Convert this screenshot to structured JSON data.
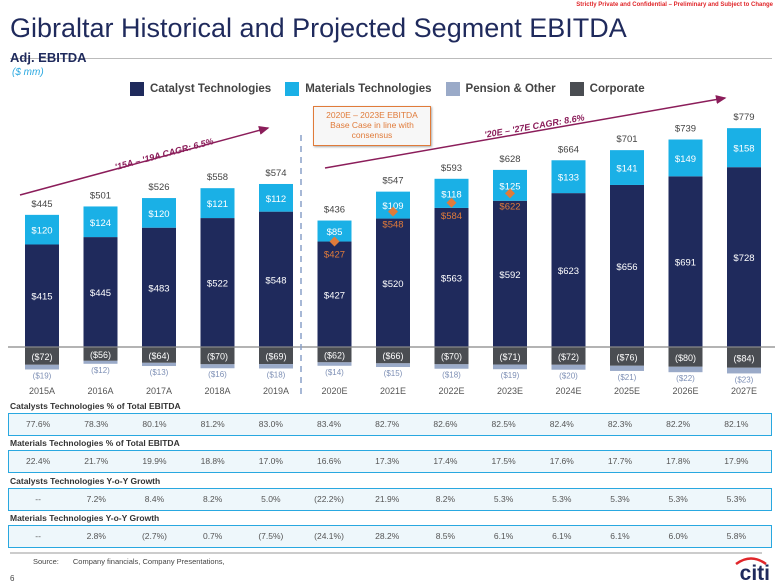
{
  "header": {
    "title": "Gibraltar Historical and Projected Segment EBITDA",
    "confidential": "Strictly Private and Confidential – Preliminary and Subject to Change"
  },
  "section": {
    "title": "Adj. EBITDA",
    "unit": "($ mm)"
  },
  "callout": {
    "line1": "2020E – 2023E EBITDA",
    "line2": "Base Case in line with",
    "line3": "consensus"
  },
  "chart_data": {
    "type": "bar",
    "stacked": true,
    "categories": [
      "2015A",
      "2016A",
      "2017A",
      "2018A",
      "2019A",
      "2020E",
      "2021E",
      "2022E",
      "2023E",
      "2024E",
      "2025E",
      "2026E",
      "2027E"
    ],
    "series": [
      {
        "name": "Catalyst Technologies",
        "color": "#1f2a5c",
        "values": [
          415,
          445,
          483,
          522,
          548,
          427,
          520,
          563,
          592,
          623,
          656,
          691,
          728
        ],
        "labels": [
          "$415",
          "$445",
          "$483",
          "$522",
          "$548",
          "$427",
          "$520",
          "$563",
          "$592",
          "$623",
          "$656",
          "$691",
          "$728"
        ]
      },
      {
        "name": "Materials Technologies",
        "color": "#1ab0e6",
        "values": [
          120,
          124,
          120,
          121,
          112,
          85,
          109,
          118,
          125,
          133,
          141,
          149,
          158
        ],
        "labels": [
          "$120",
          "$124",
          "$120",
          "$121",
          "$112",
          "$85",
          "$109",
          "$118",
          "$125",
          "$133",
          "$141",
          "$149",
          "$158"
        ]
      },
      {
        "name": "Pension & Other",
        "color": "#9aaac8",
        "values": [
          -19,
          -12,
          -13,
          -16,
          -18,
          -14,
          -15,
          -18,
          -19,
          -20,
          -21,
          -22,
          -23
        ],
        "labels": [
          "($19)",
          "($12)",
          "($13)",
          "($16)",
          "($18)",
          "($14)",
          "($15)",
          "($18)",
          "($19)",
          "($20)",
          "($21)",
          "($22)",
          "($23)"
        ]
      },
      {
        "name": "Corporate",
        "color": "#4a4d52",
        "values": [
          -72,
          -56,
          -64,
          -70,
          -69,
          -62,
          -66,
          -70,
          -71,
          -72,
          -76,
          -80,
          -84
        ],
        "labels": [
          "($72)",
          "($56)",
          "($64)",
          "($70)",
          "($69)",
          "($62)",
          "($66)",
          "($70)",
          "($71)",
          "($72)",
          "($76)",
          "($80)",
          "($84)"
        ]
      }
    ],
    "totals": [
      "$445",
      "$501",
      "$526",
      "$558",
      "$574",
      "$436",
      "$547",
      "$593",
      "$628",
      "$664",
      "$701",
      "$739",
      "$779"
    ],
    "consensus": {
      "color": "#e07b3a",
      "categories": [
        "2020E",
        "2021E",
        "2022E",
        "2023E"
      ],
      "values": [
        427,
        548,
        584,
        622
      ],
      "labels": [
        "$427",
        "$548",
        "$584",
        "$622"
      ]
    },
    "annotations": [
      {
        "text": "'15A – '19A CAGR: 6.5%",
        "color": "#8b1d5a"
      },
      {
        "text": "'20E – '27E CAGR: 8.6%",
        "color": "#8b1d5a"
      }
    ],
    "divider_after": "2019A"
  },
  "table": [
    {
      "label": "Catalysts Technologies % of Total EBITDA",
      "values": [
        "77.6%",
        "78.3%",
        "80.1%",
        "81.2%",
        "83.0%",
        "83.4%",
        "82.7%",
        "82.6%",
        "82.5%",
        "82.4%",
        "82.3%",
        "82.2%",
        "82.1%"
      ]
    },
    {
      "label": "Materials Technologies % of Total EBITDA",
      "values": [
        "22.4%",
        "21.7%",
        "19.9%",
        "18.8%",
        "17.0%",
        "16.6%",
        "17.3%",
        "17.4%",
        "17.5%",
        "17.6%",
        "17.7%",
        "17.8%",
        "17.9%"
      ]
    },
    {
      "label": "Catalysts Technologies Y-o-Y Growth",
      "values": [
        "--",
        "7.2%",
        "8.4%",
        "8.2%",
        "5.0%",
        "(22.2%)",
        "21.9%",
        "8.2%",
        "5.3%",
        "5.3%",
        "5.3%",
        "5.3%",
        "5.3%"
      ]
    },
    {
      "label": "Materials Technologies Y-o-Y Growth",
      "values": [
        "--",
        "2.8%",
        "(2.7%)",
        "0.7%",
        "(7.5%)",
        "(24.1%)",
        "28.2%",
        "8.5%",
        "6.1%",
        "6.1%",
        "6.1%",
        "6.0%",
        "5.8%"
      ]
    }
  ],
  "footer": {
    "source_label": "Source:",
    "source_text": "Company financials, Company Presentations,",
    "page": "6",
    "logo": "citi"
  }
}
